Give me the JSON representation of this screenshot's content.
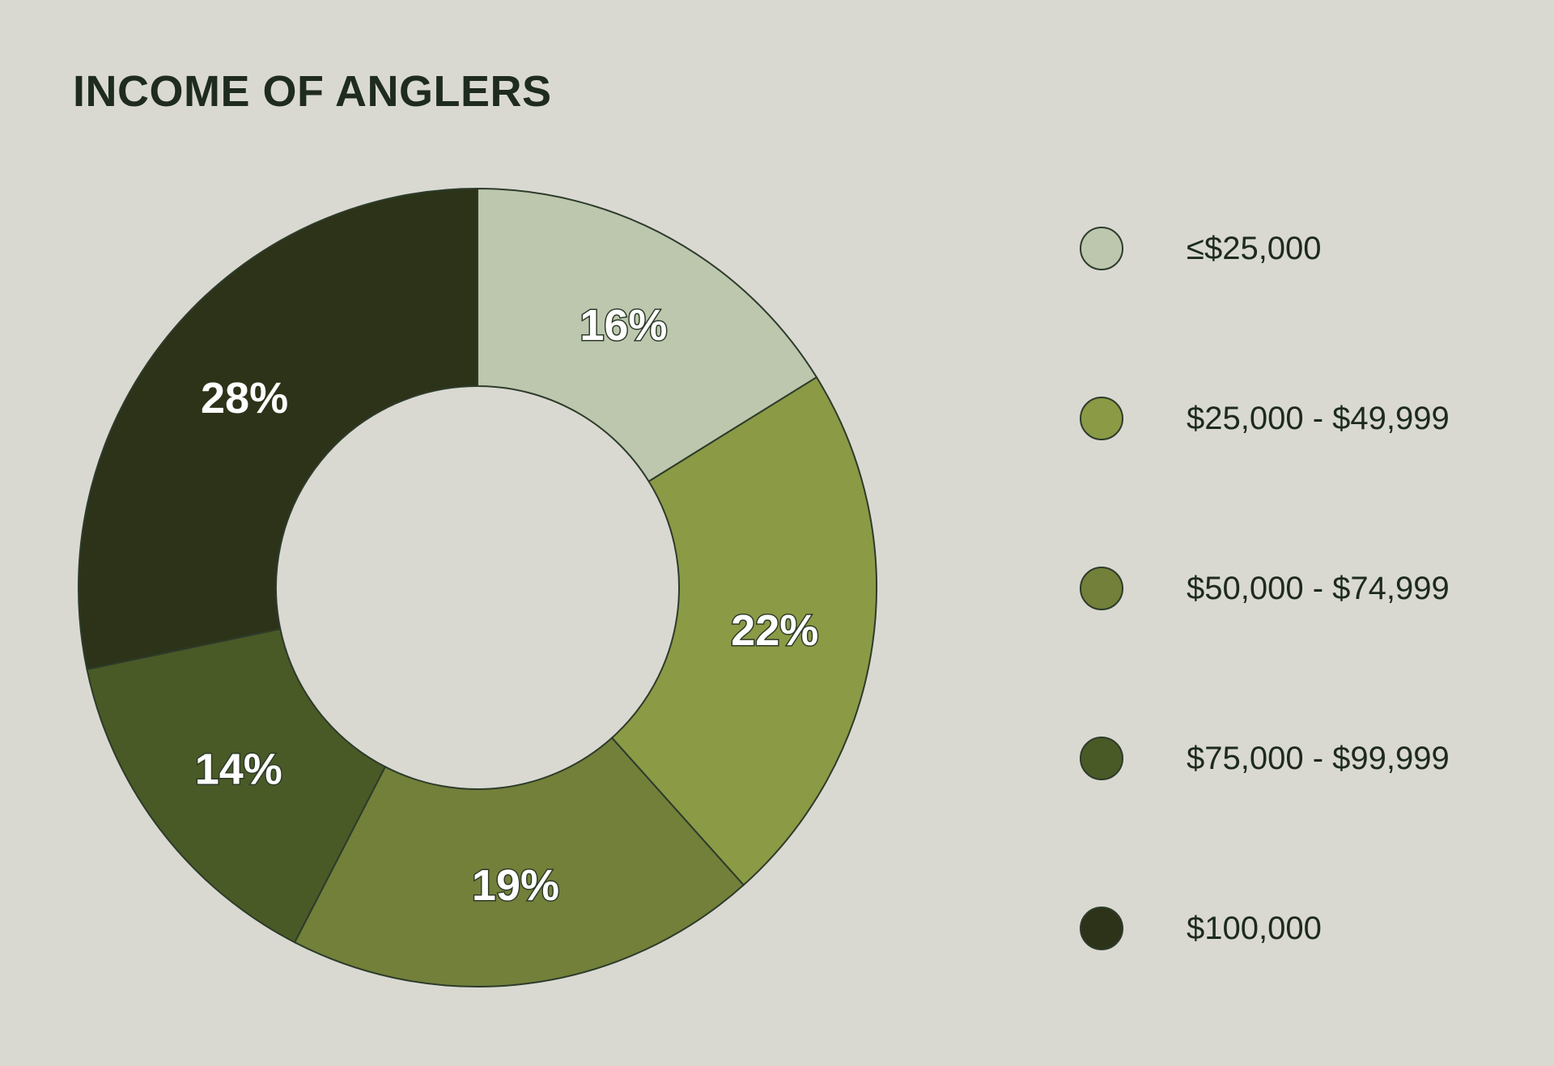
{
  "title": "INCOME OF ANGLERS",
  "colors": {
    "background": "#d9d9d2",
    "title_text": "#1e2b1e",
    "outline": "#2d3b2a"
  },
  "chart_data": {
    "type": "pie",
    "variant": "donut",
    "title": "INCOME OF ANGLERS",
    "categories": [
      "≤$25,000",
      "$25,000 - $49,999",
      "$50,000 - $74,999",
      "$75,000 - $99,999",
      "$100,000"
    ],
    "values": [
      16,
      22,
      19,
      14,
      28
    ],
    "unit": "%",
    "slice_order": "clockwise from 12 o'clock",
    "colors": [
      "#bcc7ae",
      "#8b9a45",
      "#72803a",
      "#4a5a26",
      "#2d3318"
    ],
    "data_labels": [
      "16%",
      "22%",
      "19%",
      "14%",
      "28%"
    ],
    "legend_position": "right"
  },
  "legend": {
    "items": [
      {
        "label": "≤$25,000",
        "color": "#bcc7ae"
      },
      {
        "label": "$25,000 - $49,999",
        "color": "#8b9a45"
      },
      {
        "label": "$50,000 - $74,999",
        "color": "#72803a"
      },
      {
        "label": "$75,000 - $99,999",
        "color": "#4a5a26"
      },
      {
        "label": "$100,000",
        "color": "#2d3318"
      }
    ]
  }
}
